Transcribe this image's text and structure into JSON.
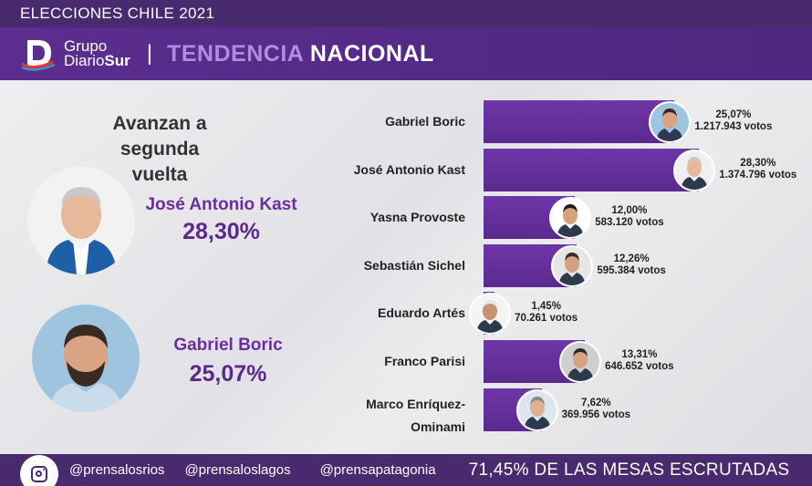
{
  "topbar": {
    "title": "ELECCIONES CHILE 2021"
  },
  "header": {
    "logo_line1": "Grupo",
    "logo_line2a": "Diario",
    "logo_line2b": "Sur",
    "separator": "|",
    "title_part1": "TENDENCIA",
    "title_part2": "NACIONAL"
  },
  "left": {
    "advance_line1": "Avanzan a",
    "advance_line2": "segunda vuelta",
    "first": {
      "name": "José Antonio Kast",
      "pct": "28,30%"
    },
    "second": {
      "name": "Gabriel Boric",
      "pct": "25,07%"
    }
  },
  "candidates": [
    {
      "name": "Gabriel Boric",
      "pct": "25,07%",
      "votes": "1.217.943 votos",
      "share": 25.07
    },
    {
      "name": "José Antonio Kast",
      "pct": "28,30%",
      "votes": "1.374.796 votos",
      "share": 28.3
    },
    {
      "name": "Yasna Provoste",
      "pct": "12,00%",
      "votes": "583.120 votos",
      "share": 12.0
    },
    {
      "name": "Sebastián Sichel",
      "pct": "12,26%",
      "votes": "595.384 votos",
      "share": 12.26
    },
    {
      "name": "Eduardo Artés",
      "pct": "1,45%",
      "votes": "70.261 votos",
      "share": 1.45
    },
    {
      "name": "Franco Parisi",
      "pct": "13,31%",
      "votes": "646.652 votos",
      "share": 13.31
    },
    {
      "name_line1": "Marco Enríquez-",
      "name_line2": "Ominami",
      "pct": "7,62%",
      "votes": "369.956 votos",
      "share": 7.62
    }
  ],
  "footer": {
    "handle1": "@prensalosrios",
    "handle2": "@prensaloslagos",
    "handle3": "@prensapatagonia",
    "mesas": "71,45% DE LAS MESAS ESCRUTADAS"
  },
  "colors": {
    "purple_dark": "#4a2a6e",
    "purple_bar": "#5a2a8e",
    "accent": "#b58be0"
  },
  "icons": {
    "instagram": "instagram-icon",
    "logo": "diariosur-logo-icon"
  }
}
